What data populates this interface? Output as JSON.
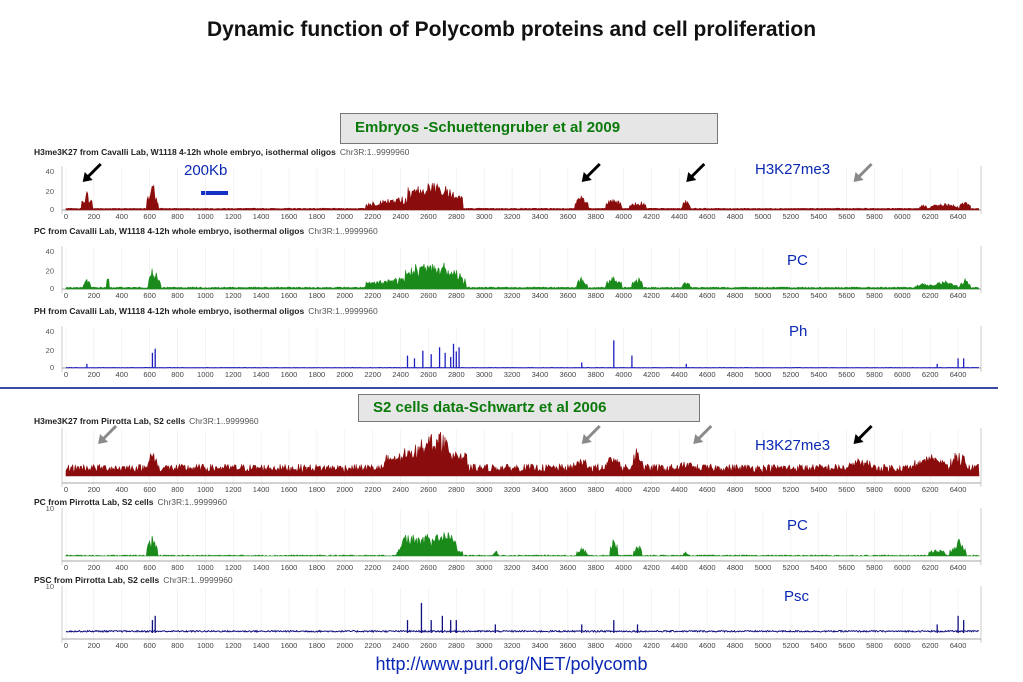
{
  "title": "Dynamic function of Polycomb proteins and cell proliferation",
  "section_embryos": "Embryos -Schuettengruber et al 2009",
  "section_s2": "S2 cells data-Schwartz et al 2006",
  "scale_label": "200Kb",
  "url": "http://www.purl.org/NET/polycomb",
  "colors": {
    "h3k27": "#8b0c0c",
    "pc": "#1a8a1a",
    "ph": "#1f1fbf",
    "psc": "#101080"
  },
  "chart_data": [
    {
      "type": "area",
      "track_title": "H3me3K27 from Cavalli Lab, W1118 4-12h whole embryo, isothermal oligos",
      "coord": "Chr3R:1..9999960",
      "annotation": "H3K27me3",
      "color_key": "h3k27",
      "yticks": [
        "40",
        "20",
        "0"
      ],
      "ylim": [
        0,
        55
      ],
      "xlim": [
        0,
        6550
      ],
      "xticks": [
        0,
        200,
        400,
        600,
        800,
        1000,
        1200,
        1400,
        1600,
        1800,
        2000,
        2200,
        2400,
        2600,
        2800,
        3000,
        3200,
        3400,
        3600,
        3800,
        4000,
        4200,
        4400,
        4600,
        4800,
        5000,
        5200,
        5400,
        5600,
        5800,
        6000,
        6200,
        6400
      ],
      "base": 2,
      "noise": 0.5,
      "peaks": [
        [
          150,
          25,
          40
        ],
        [
          610,
          30,
          30
        ],
        [
          640,
          24,
          25
        ],
        [
          2500,
          20,
          350
        ],
        [
          2650,
          28,
          200
        ],
        [
          3700,
          20,
          50
        ],
        [
          3930,
          18,
          60
        ],
        [
          4100,
          13,
          60
        ],
        [
          4450,
          14,
          30
        ],
        [
          6150,
          6,
          30
        ],
        [
          6300,
          8,
          100
        ],
        [
          6450,
          14,
          40
        ]
      ],
      "arrows": [
        [
          120,
          "black"
        ],
        [
          3700,
          "black"
        ],
        [
          4450,
          "black"
        ],
        [
          5650,
          "gray"
        ]
      ]
    },
    {
      "type": "area",
      "track_title": "PC from Cavalli Lab, W1118 4-12h whole embryo, isothermal oligos",
      "coord": "Chr3R:1..9999960",
      "annotation": "PC",
      "color_key": "pc",
      "yticks": [
        "40",
        "20",
        "0"
      ],
      "ylim": [
        0,
        55
      ],
      "xlim": [
        0,
        6550
      ],
      "xticks": [
        0,
        200,
        400,
        600,
        800,
        1000,
        1200,
        1400,
        1600,
        1800,
        2000,
        2200,
        2400,
        2600,
        2800,
        3000,
        3200,
        3400,
        3600,
        3800,
        4000,
        4200,
        4400,
        4600,
        4800,
        5000,
        5200,
        5400,
        5600,
        5800,
        6000,
        6200,
        6400
      ],
      "base": 2,
      "noise": 0.8,
      "peaks": [
        [
          150,
          12,
          30
        ],
        [
          300,
          22,
          8
        ],
        [
          620,
          28,
          30
        ],
        [
          660,
          18,
          20
        ],
        [
          2500,
          18,
          350
        ],
        [
          2650,
          30,
          220
        ],
        [
          3700,
          16,
          40
        ],
        [
          3930,
          18,
          60
        ],
        [
          4100,
          16,
          40
        ],
        [
          4450,
          10,
          30
        ],
        [
          6150,
          6,
          60
        ],
        [
          6300,
          10,
          100
        ],
        [
          6450,
          12,
          40
        ]
      ],
      "arrows": []
    },
    {
      "type": "bar",
      "track_title": "PH from Cavalli Lab, W1118 4-12h whole embryo, isothermal oligos",
      "coord": "Chr3R:1..9999960",
      "annotation": "Ph",
      "color_key": "ph",
      "yticks": [
        "40",
        "20",
        "0"
      ],
      "ylim": [
        0,
        55
      ],
      "xlim": [
        0,
        6550
      ],
      "xticks": [
        0,
        200,
        400,
        600,
        800,
        1000,
        1200,
        1400,
        1600,
        1800,
        2000,
        2200,
        2400,
        2600,
        2800,
        3000,
        3200,
        3400,
        3600,
        3800,
        4000,
        4200,
        4400,
        4600,
        4800,
        5000,
        5200,
        5400,
        5600,
        5800,
        6000,
        6200,
        6400
      ],
      "spikes": [
        [
          150,
          6
        ],
        [
          620,
          22
        ],
        [
          640,
          28
        ],
        [
          2450,
          18
        ],
        [
          2500,
          14
        ],
        [
          2560,
          25
        ],
        [
          2620,
          20
        ],
        [
          2680,
          30
        ],
        [
          2720,
          22
        ],
        [
          2760,
          16
        ],
        [
          2780,
          35
        ],
        [
          2800,
          24
        ],
        [
          2820,
          30
        ],
        [
          3700,
          8
        ],
        [
          3930,
          40
        ],
        [
          4060,
          18
        ],
        [
          4450,
          6
        ],
        [
          6250,
          6
        ],
        [
          6400,
          14
        ],
        [
          6440,
          14
        ]
      ]
    },
    {
      "type": "area",
      "track_title": "H3me3K27 from Pirrotta Lab, S2 cells",
      "coord": "Chr3R:1..9999960",
      "annotation": "H3K27me3",
      "color_key": "h3k27",
      "yticks": [],
      "ylim": [
        0,
        10
      ],
      "xlim": [
        0,
        6550
      ],
      "xticks": [
        0,
        200,
        400,
        600,
        800,
        1000,
        1200,
        1400,
        1600,
        1800,
        2000,
        2200,
        2400,
        2600,
        2800,
        3000,
        3200,
        3400,
        3600,
        3800,
        4000,
        4200,
        4400,
        4600,
        4800,
        5000,
        5200,
        5400,
        5600,
        5800,
        6000,
        6200,
        6400
      ],
      "base": 1.8,
      "noise": 0.9,
      "peaks": [
        [
          620,
          4,
          40
        ],
        [
          2500,
          5,
          220
        ],
        [
          2700,
          7,
          180
        ],
        [
          3700,
          2,
          60
        ],
        [
          3930,
          3,
          60
        ],
        [
          4100,
          5,
          40
        ],
        [
          4450,
          1,
          50
        ],
        [
          5700,
          2,
          80
        ],
        [
          6200,
          3,
          120
        ],
        [
          6400,
          4,
          60
        ]
      ],
      "arrows": [
        [
          230,
          "gray"
        ],
        [
          3700,
          "gray"
        ],
        [
          4500,
          "gray"
        ],
        [
          5650,
          "black"
        ]
      ]
    },
    {
      "type": "area",
      "track_title": "PC from Pirrotta Lab, S2 cells",
      "coord": "Chr3R:1..9999960",
      "annotation": "PC",
      "color_key": "pc",
      "yticks": [
        "10"
      ],
      "ylim": [
        0,
        10
      ],
      "xlim": [
        0,
        6550
      ],
      "xticks": [
        0,
        200,
        400,
        600,
        800,
        1000,
        1200,
        1400,
        1600,
        1800,
        2000,
        2200,
        2400,
        2600,
        2800,
        3000,
        3200,
        3400,
        3600,
        3800,
        4000,
        4200,
        4400,
        4600,
        4800,
        5000,
        5200,
        5400,
        5600,
        5800,
        6000,
        6200,
        6400
      ],
      "base": 0.1,
      "noise": 0.15,
      "peaks": [
        [
          620,
          5,
          40
        ],
        [
          2450,
          3,
          80
        ],
        [
          2600,
          5,
          200
        ],
        [
          2750,
          3,
          100
        ],
        [
          3080,
          1.5,
          20
        ],
        [
          3700,
          2,
          40
        ],
        [
          3930,
          5,
          30
        ],
        [
          4100,
          3,
          30
        ],
        [
          4450,
          1,
          20
        ],
        [
          6250,
          2,
          60
        ],
        [
          6400,
          4,
          60
        ]
      ],
      "arrows": []
    },
    {
      "type": "bar",
      "track_title": "PSC from Pirrotta Lab, S2 cells",
      "coord": "Chr3R:1..9999960",
      "annotation": "Psc",
      "color_key": "psc",
      "yticks": [
        "10"
      ],
      "ylim": [
        0,
        10
      ],
      "xlim": [
        0,
        6550
      ],
      "xticks": [
        0,
        200,
        400,
        600,
        800,
        1000,
        1200,
        1400,
        1600,
        1800,
        2000,
        2200,
        2400,
        2600,
        2800,
        3000,
        3200,
        3400,
        3600,
        3800,
        4000,
        4200,
        4400,
        4600,
        4800,
        5000,
        5200,
        5400,
        5600,
        5800,
        6000,
        6200,
        6400
      ],
      "base": 0.4,
      "spikes": [
        [
          620,
          3
        ],
        [
          640,
          4
        ],
        [
          2450,
          3
        ],
        [
          2550,
          7
        ],
        [
          2620,
          3
        ],
        [
          2700,
          4
        ],
        [
          2760,
          3
        ],
        [
          2800,
          3
        ],
        [
          3080,
          2
        ],
        [
          3700,
          2
        ],
        [
          3930,
          3
        ],
        [
          4100,
          2
        ],
        [
          6250,
          2
        ],
        [
          6400,
          4
        ],
        [
          6440,
          3
        ]
      ]
    }
  ]
}
